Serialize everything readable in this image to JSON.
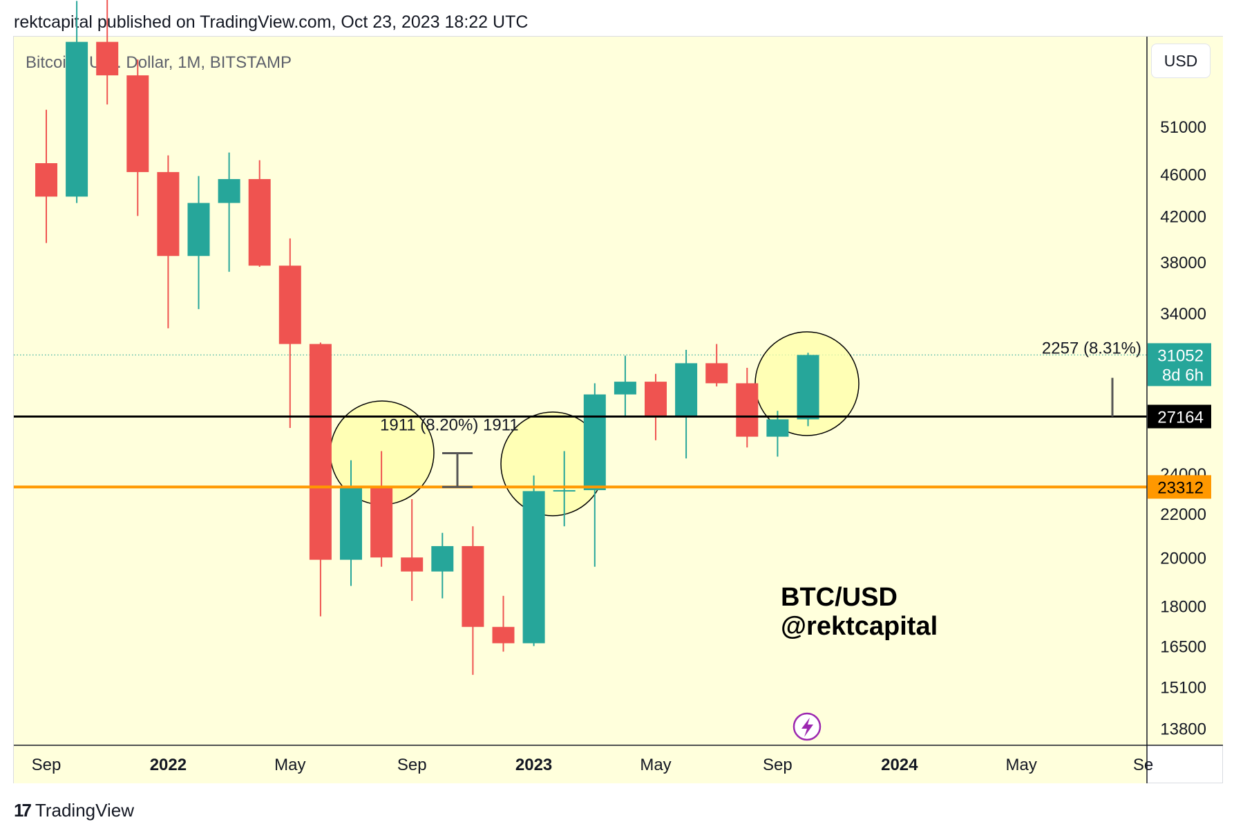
{
  "header": {
    "text": "rektcapital published on TradingView.com, Oct 23, 2023 18:22 UTC"
  },
  "symbol_label": "Bitcoin / U.S. Dollar, 1M, BITSTAMP",
  "currency_button": "USD",
  "watermark": {
    "line1": "BTC/USD",
    "line2": "@rektcapital"
  },
  "footer": {
    "logo": "17",
    "brand": "TradingView"
  },
  "colors": {
    "background": "#ffffdc",
    "up": "#26a69a",
    "down": "#ef5350",
    "support": "#000000",
    "orange_level": "#ff9800",
    "highlight_circle": "#ffffa8",
    "flash_icon": "#9c27b0"
  },
  "icons": {
    "flash": "lightning-icon"
  },
  "chart_data": {
    "type": "candlestick",
    "title": "Bitcoin / U.S. Dollar, 1M, BITSTAMP",
    "scale": "log",
    "ylim": [
      13300,
      62000
    ],
    "y_ticks": [
      51000,
      46000,
      42000,
      38000,
      34000,
      24000,
      22000,
      20000,
      18000,
      16500,
      15100,
      13800
    ],
    "x_ticks": [
      {
        "label": "Sep",
        "bold": false,
        "t": "2021-09"
      },
      {
        "label": "2022",
        "bold": true,
        "t": "2022-01"
      },
      {
        "label": "May",
        "bold": false,
        "t": "2022-05"
      },
      {
        "label": "Sep",
        "bold": false,
        "t": "2022-09"
      },
      {
        "label": "2023",
        "bold": true,
        "t": "2023-01"
      },
      {
        "label": "May",
        "bold": false,
        "t": "2023-05"
      },
      {
        "label": "Sep",
        "bold": false,
        "t": "2023-09"
      },
      {
        "label": "2024",
        "bold": true,
        "t": "2024-01"
      },
      {
        "label": "May",
        "bold": false,
        "t": "2024-05"
      },
      {
        "label": "Se",
        "bold": false,
        "t": "2024-09"
      }
    ],
    "candles": [
      {
        "t": "2021-09",
        "o": 47100,
        "h": 52900,
        "l": 39600,
        "c": 43800
      },
      {
        "t": "2021-10",
        "o": 43800,
        "h": 67000,
        "l": 43200,
        "c": 61300
      },
      {
        "t": "2021-11",
        "o": 61300,
        "h": 69000,
        "l": 53500,
        "c": 57000
      },
      {
        "t": "2021-12",
        "o": 57000,
        "h": 59000,
        "l": 42000,
        "c": 46200
      },
      {
        "t": "2022-01",
        "o": 46200,
        "h": 47900,
        "l": 32900,
        "c": 38500
      },
      {
        "t": "2022-02",
        "o": 38500,
        "h": 45800,
        "l": 34300,
        "c": 43200
      },
      {
        "t": "2022-03",
        "o": 43200,
        "h": 48200,
        "l": 37200,
        "c": 45500
      },
      {
        "t": "2022-04",
        "o": 45500,
        "h": 47400,
        "l": 37600,
        "c": 37700
      },
      {
        "t": "2022-05",
        "o": 37700,
        "h": 40000,
        "l": 26500,
        "c": 31800
      },
      {
        "t": "2022-06",
        "o": 31800,
        "h": 31900,
        "l": 17600,
        "c": 19900
      },
      {
        "t": "2022-07",
        "o": 19900,
        "h": 24700,
        "l": 18800,
        "c": 23300
      },
      {
        "t": "2022-08",
        "o": 23300,
        "h": 25200,
        "l": 19600,
        "c": 20000
      },
      {
        "t": "2022-09",
        "o": 20000,
        "h": 22700,
        "l": 18200,
        "c": 19400
      },
      {
        "t": "2022-10",
        "o": 19400,
        "h": 21100,
        "l": 18300,
        "c": 20500
      },
      {
        "t": "2022-11",
        "o": 20500,
        "h": 21400,
        "l": 15500,
        "c": 17200
      },
      {
        "t": "2022-12",
        "o": 17200,
        "h": 18400,
        "l": 16300,
        "c": 16600
      },
      {
        "t": "2023-01",
        "o": 16600,
        "h": 23900,
        "l": 16500,
        "c": 23100
      },
      {
        "t": "2023-02",
        "o": 23100,
        "h": 25200,
        "l": 21400,
        "c": 23150
      },
      {
        "t": "2023-03",
        "o": 23150,
        "h": 29200,
        "l": 19600,
        "c": 28500
      },
      {
        "t": "2023-04",
        "o": 28500,
        "h": 31000,
        "l": 27100,
        "c": 29300
      },
      {
        "t": "2023-05",
        "o": 29300,
        "h": 29800,
        "l": 25800,
        "c": 27200
      },
      {
        "t": "2023-06",
        "o": 27200,
        "h": 31400,
        "l": 24800,
        "c": 30500
      },
      {
        "t": "2023-07",
        "o": 30500,
        "h": 31800,
        "l": 29000,
        "c": 29200
      },
      {
        "t": "2023-08",
        "o": 29200,
        "h": 30200,
        "l": 25400,
        "c": 26000
      },
      {
        "t": "2023-09",
        "o": 26000,
        "h": 27500,
        "l": 24900,
        "c": 27000
      },
      {
        "t": "2023-10",
        "o": 27000,
        "h": 31200,
        "l": 26600,
        "c": 31052
      }
    ],
    "horizontal_lines": [
      {
        "value": 27164,
        "label": "27164",
        "color": "#000000",
        "style": "solid"
      },
      {
        "value": 23312,
        "label": "23312",
        "color": "#ff9800",
        "style": "solid"
      },
      {
        "value": 31052,
        "label": "31052",
        "sub": "8d 6h",
        "color": "#26a69a",
        "style": "dotted"
      }
    ],
    "measurements": [
      {
        "text": "1911 (8.20%) 1911"
      },
      {
        "text": "2257 (8.31%)"
      }
    ],
    "highlights": [
      "2022-08",
      "2023-02",
      "2023-10"
    ]
  }
}
